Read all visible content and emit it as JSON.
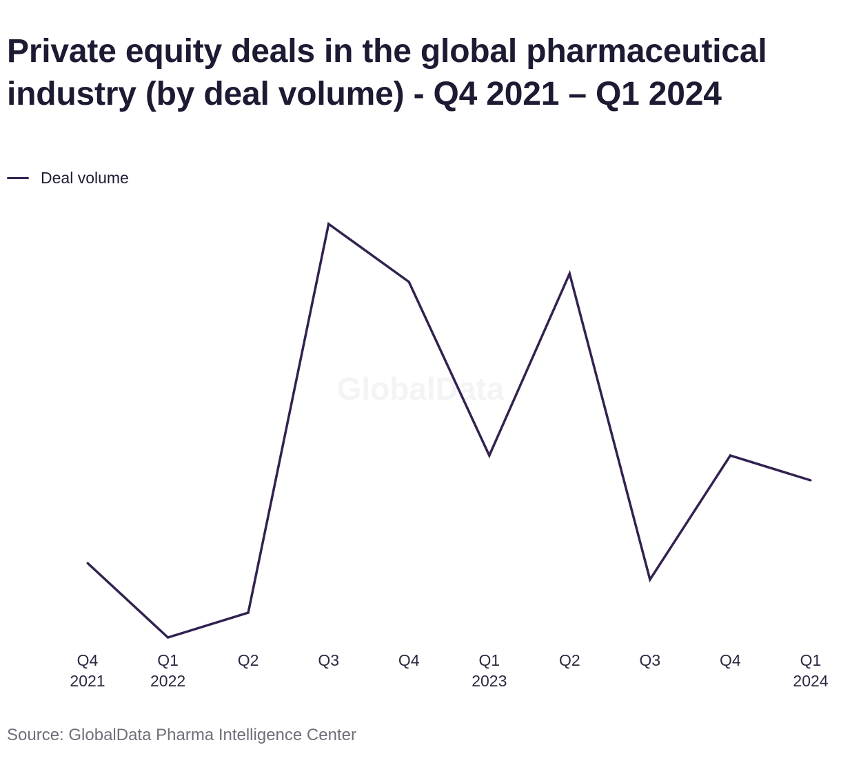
{
  "title": "Private equity deals in the global pharmaceutical industry (by deal volume) - Q4 2021 – Q1 2024",
  "legend": {
    "label": "Deal volume"
  },
  "watermark": "GlobalData",
  "source": "Source: GlobalData Pharma Intelligence Center",
  "colors": {
    "line": "#32224f",
    "title": "#1c1b33",
    "source": "#6f6f7a",
    "watermark": "#f4f4f6"
  },
  "chart_data": {
    "type": "line",
    "title": "Private equity deals in the global pharmaceutical industry (by deal volume) - Q4 2021 – Q1 2024",
    "xlabel": "",
    "ylabel": "",
    "categories": [
      [
        "Q4",
        "2021"
      ],
      [
        "Q1",
        "2022"
      ],
      [
        "Q2",
        ""
      ],
      [
        "Q3",
        ""
      ],
      [
        "Q4",
        ""
      ],
      [
        "Q1",
        "2023"
      ],
      [
        "Q2",
        ""
      ],
      [
        "Q3",
        ""
      ],
      [
        "Q4",
        ""
      ],
      [
        "Q1",
        "2024"
      ]
    ],
    "series": [
      {
        "name": "Deal volume",
        "values": [
          27,
          18,
          21,
          68,
          61,
          40,
          62,
          25,
          40,
          37
        ]
      }
    ],
    "ylim": [
      18,
      68
    ],
    "y_axis_visible": false,
    "grid": false,
    "legend_position": "top-left"
  }
}
